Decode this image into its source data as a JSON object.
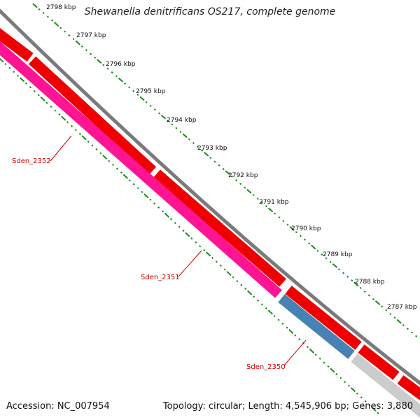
{
  "title": "Shewanella denitrificans OS217, complete genome",
  "accession": "Accession: NC_007954",
  "summary": "Topology: circular; Length: 4,545,906 bp; Genes: 3,880",
  "ticks": [
    "2798 kbp",
    "2797 kbp",
    "2796 kbp",
    "2795 kbp",
    "2794 kbp",
    "2793 kbp",
    "2792 kbp",
    "2791 kbp",
    "2790 kbp",
    "2789 kbp",
    "2788 kbp",
    "2787 kbp"
  ],
  "genes": [
    {
      "label": "Sden_2352"
    },
    {
      "label": "Sden_2351"
    },
    {
      "label": "Sden_2350"
    }
  ],
  "colors": {
    "backbone": "#7a7a7a",
    "forward_cds": "#ff0000",
    "reverse_cds_pink": "#ff1493",
    "reverse_cds_blue": "#4682b4",
    "other_feature": "#cccccc",
    "tick_color": "#1a8a1a",
    "label_color": "#cc0000"
  }
}
